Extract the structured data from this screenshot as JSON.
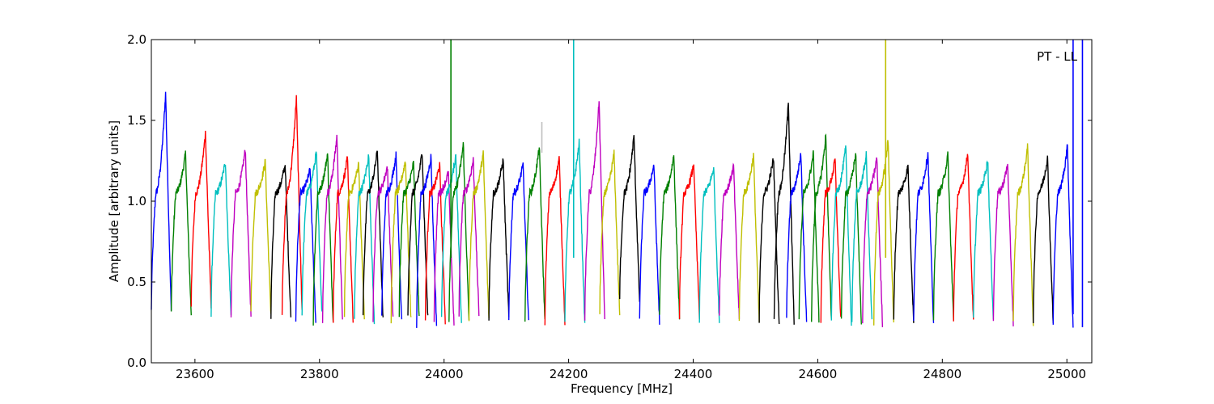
{
  "chart_data": {
    "type": "line",
    "title": "",
    "xlabel": "Frequency [MHz]",
    "ylabel": "Amplitude [arbitrary units]",
    "xlim": [
      23530,
      25040
    ],
    "ylim": [
      0.0,
      2.0
    ],
    "x_ticks": [
      23600,
      23800,
      24000,
      24200,
      24400,
      24600,
      24800,
      25000
    ],
    "x_tick_labels": [
      "23600",
      "23800",
      "24000",
      "24200",
      "24400",
      "24600",
      "24800",
      "25000"
    ],
    "y_ticks": [
      0.0,
      0.5,
      1.0,
      1.5,
      2.0
    ],
    "y_tick_labels": [
      "0.0",
      "0.5",
      "1.0",
      "1.5",
      "2.0"
    ],
    "grid": false,
    "annotation": "PT - LL",
    "annotation_placement": "top-right",
    "palette": [
      "#0000ff",
      "#008000",
      "#ff0000",
      "#00bfbf",
      "#bf00bf",
      "#bfbf00",
      "#000000"
    ],
    "band_width_mhz": 32,
    "bands": [
      {
        "start": 23530,
        "peak": 1.68,
        "low": 0.32,
        "color": "#0000ff"
      },
      {
        "start": 23562,
        "peak": 1.3,
        "low": 0.3,
        "color": "#008000"
      },
      {
        "start": 23594,
        "peak": 1.43,
        "low": 0.36,
        "color": "#ff0000"
      },
      {
        "start": 23626,
        "peak": 1.25,
        "low": 0.29,
        "color": "#00bfbf"
      },
      {
        "start": 23658,
        "peak": 1.33,
        "low": 0.29,
        "color": "#bf00bf"
      },
      {
        "start": 23690,
        "peak": 1.25,
        "low": 0.3,
        "color": "#bfbf00"
      },
      {
        "start": 23722,
        "peak": 1.23,
        "low": 0.28,
        "color": "#000000"
      },
      {
        "start": 23740,
        "peak": 1.65,
        "low": 0.32,
        "color": "#ff0000"
      },
      {
        "start": 23762,
        "peak": 1.2,
        "low": 0.25,
        "color": "#0000ff"
      },
      {
        "start": 23772,
        "peak": 1.31,
        "low": 0.3,
        "color": "#00bfbf"
      },
      {
        "start": 23790,
        "peak": 1.3,
        "low": 0.25,
        "color": "#008000"
      },
      {
        "start": 23805,
        "peak": 1.41,
        "low": 0.26,
        "color": "#bf00bf"
      },
      {
        "start": 23822,
        "peak": 1.27,
        "low": 0.25,
        "color": "#ff0000"
      },
      {
        "start": 23840,
        "peak": 1.24,
        "low": 0.29,
        "color": "#bfbf00"
      },
      {
        "start": 23856,
        "peak": 1.29,
        "low": 0.25,
        "color": "#00bfbf"
      },
      {
        "start": 23870,
        "peak": 1.32,
        "low": 0.28,
        "color": "#000000"
      },
      {
        "start": 23886,
        "peak": 1.22,
        "low": 0.27,
        "color": "#bf00bf"
      },
      {
        "start": 23900,
        "peak": 1.29,
        "low": 0.27,
        "color": "#0000ff"
      },
      {
        "start": 23915,
        "peak": 1.26,
        "low": 0.26,
        "color": "#bfbf00"
      },
      {
        "start": 23928,
        "peak": 1.24,
        "low": 0.3,
        "color": "#008000"
      },
      {
        "start": 23942,
        "peak": 1.31,
        "low": 0.27,
        "color": "#000000"
      },
      {
        "start": 23956,
        "peak": 1.28,
        "low": 0.24,
        "color": "#0000ff"
      },
      {
        "start": 23970,
        "peak": 1.23,
        "low": 0.26,
        "color": "#ff0000"
      },
      {
        "start": 23984,
        "peak": 1.18,
        "low": 0.24,
        "color": "#bf00bf"
      },
      {
        "start": 23996,
        "peak": 1.29,
        "low": 0.26,
        "color": "#00bfbf"
      },
      {
        "start": 24008,
        "peak": 1.36,
        "low": 0.26,
        "color": "#008000"
      },
      {
        "start": 24024,
        "peak": 1.26,
        "low": 0.3,
        "color": "#bf00bf"
      },
      {
        "start": 24040,
        "peak": 1.3,
        "low": 0.27,
        "color": "#bfbf00"
      },
      {
        "start": 24072,
        "peak": 1.26,
        "low": 0.28,
        "color": "#000000"
      },
      {
        "start": 24104,
        "peak": 1.23,
        "low": 0.24,
        "color": "#0000ff"
      },
      {
        "start": 24130,
        "peak": 1.34,
        "low": 0.25,
        "color": "#008000"
      },
      {
        "start": 24162,
        "peak": 1.27,
        "low": 0.25,
        "color": "#ff0000"
      },
      {
        "start": 24194,
        "peak": 1.37,
        "low": 0.23,
        "color": "#00bfbf"
      },
      {
        "start": 24226,
        "peak": 1.63,
        "low": 0.27,
        "color": "#bf00bf"
      },
      {
        "start": 24250,
        "peak": 1.3,
        "low": 0.3,
        "color": "#bfbf00"
      },
      {
        "start": 24282,
        "peak": 1.41,
        "low": 0.38,
        "color": "#000000"
      },
      {
        "start": 24314,
        "peak": 1.23,
        "low": 0.25,
        "color": "#0000ff"
      },
      {
        "start": 24346,
        "peak": 1.29,
        "low": 0.28,
        "color": "#008000"
      },
      {
        "start": 24378,
        "peak": 1.23,
        "low": 0.29,
        "color": "#ff0000"
      },
      {
        "start": 24410,
        "peak": 1.21,
        "low": 0.25,
        "color": "#00bfbf"
      },
      {
        "start": 24442,
        "peak": 1.22,
        "low": 0.27,
        "color": "#bf00bf"
      },
      {
        "start": 24474,
        "peak": 1.29,
        "low": 0.25,
        "color": "#bfbf00"
      },
      {
        "start": 24506,
        "peak": 1.27,
        "low": 0.25,
        "color": "#000000"
      },
      {
        "start": 24530,
        "peak": 1.62,
        "low": 0.25,
        "color": "#000000"
      },
      {
        "start": 24550,
        "peak": 1.3,
        "low": 0.26,
        "color": "#0000ff"
      },
      {
        "start": 24570,
        "peak": 1.3,
        "low": 0.27,
        "color": "#008000"
      },
      {
        "start": 24590,
        "peak": 1.41,
        "low": 0.26,
        "color": "#008000"
      },
      {
        "start": 24605,
        "peak": 1.26,
        "low": 0.26,
        "color": "#ff0000"
      },
      {
        "start": 24622,
        "peak": 1.34,
        "low": 0.24,
        "color": "#00bfbf"
      },
      {
        "start": 24638,
        "peak": 1.3,
        "low": 0.26,
        "color": "#008000"
      },
      {
        "start": 24655,
        "peak": 1.29,
        "low": 0.25,
        "color": "#00bfbf"
      },
      {
        "start": 24672,
        "peak": 1.27,
        "low": 0.24,
        "color": "#bf00bf"
      },
      {
        "start": 24690,
        "peak": 1.38,
        "low": 0.24,
        "color": "#bfbf00"
      },
      {
        "start": 24722,
        "peak": 1.22,
        "low": 0.25,
        "color": "#000000"
      },
      {
        "start": 24754,
        "peak": 1.3,
        "low": 0.24,
        "color": "#0000ff"
      },
      {
        "start": 24786,
        "peak": 1.29,
        "low": 0.27,
        "color": "#008000"
      },
      {
        "start": 24818,
        "peak": 1.3,
        "low": 0.25,
        "color": "#ff0000"
      },
      {
        "start": 24850,
        "peak": 1.26,
        "low": 0.26,
        "color": "#00bfbf"
      },
      {
        "start": 24882,
        "peak": 1.23,
        "low": 0.25,
        "color": "#bf00bf"
      },
      {
        "start": 24914,
        "peak": 1.34,
        "low": 0.25,
        "color": "#bfbf00"
      },
      {
        "start": 24946,
        "peak": 1.27,
        "low": 0.25,
        "color": "#000000"
      },
      {
        "start": 24978,
        "peak": 1.35,
        "low": 0.22,
        "color": "#0000ff"
      }
    ],
    "spikes": [
      {
        "x": 24011,
        "y0": 0.65,
        "y1": 2.0,
        "color": "#008000"
      },
      {
        "x": 24157,
        "y0": 1.3,
        "y1": 1.49,
        "color": "#bfbfbf"
      },
      {
        "x": 24208,
        "y0": 0.65,
        "y1": 2.0,
        "color": "#00bfbf"
      },
      {
        "x": 24709,
        "y0": 0.65,
        "y1": 2.0,
        "color": "#bfbf00"
      },
      {
        "x": 25010,
        "y0": 0.3,
        "y1": 2.0,
        "color": "#0000ff"
      },
      {
        "x": 25025,
        "y0": 0.22,
        "y1": 2.0,
        "color": "#0000ff"
      }
    ]
  }
}
